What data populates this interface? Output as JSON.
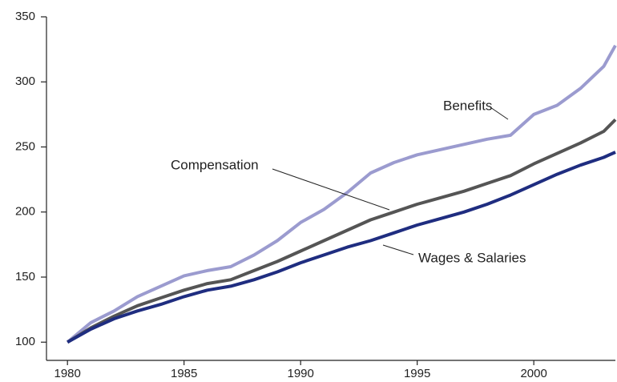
{
  "chart_data": {
    "type": "line",
    "x": [
      1980,
      1981,
      1982,
      1983,
      1984,
      1985,
      1986,
      1987,
      1988,
      1989,
      1990,
      1991,
      1992,
      1993,
      1994,
      1995,
      1996,
      1997,
      1998,
      1999,
      2000,
      2001,
      2002,
      2003,
      2003.5
    ],
    "series": [
      {
        "name": "Benefits",
        "color": "#9b9bcf",
        "values": [
          100,
          115,
          124,
          135,
          143,
          151,
          155,
          158,
          167,
          178,
          192,
          202,
          215,
          230,
          238,
          244,
          248,
          252,
          256,
          259,
          275,
          282,
          295,
          312,
          328
        ]
      },
      {
        "name": "Compensation",
        "color": "#555555",
        "values": [
          100,
          111,
          120,
          128,
          134,
          140,
          145,
          148,
          155,
          162,
          170,
          178,
          186,
          194,
          200,
          206,
          211,
          216,
          222,
          228,
          237,
          245,
          253,
          262,
          271
        ]
      },
      {
        "name": "Wages & Salaries",
        "color": "#1f2d80",
        "values": [
          100,
          110,
          118,
          124,
          129,
          135,
          140,
          143,
          148,
          154,
          161,
          167,
          173,
          178,
          184,
          190,
          195,
          200,
          206,
          213,
          221,
          229,
          236,
          242,
          246
        ]
      }
    ],
    "xlim": [
      1979.1,
      2003.5
    ],
    "xticks": [
      1980,
      1985,
      1990,
      1995,
      2000
    ],
    "ylim": [
      86,
      350
    ],
    "yticks": [
      100,
      150,
      200,
      250,
      300,
      350
    ]
  }
}
